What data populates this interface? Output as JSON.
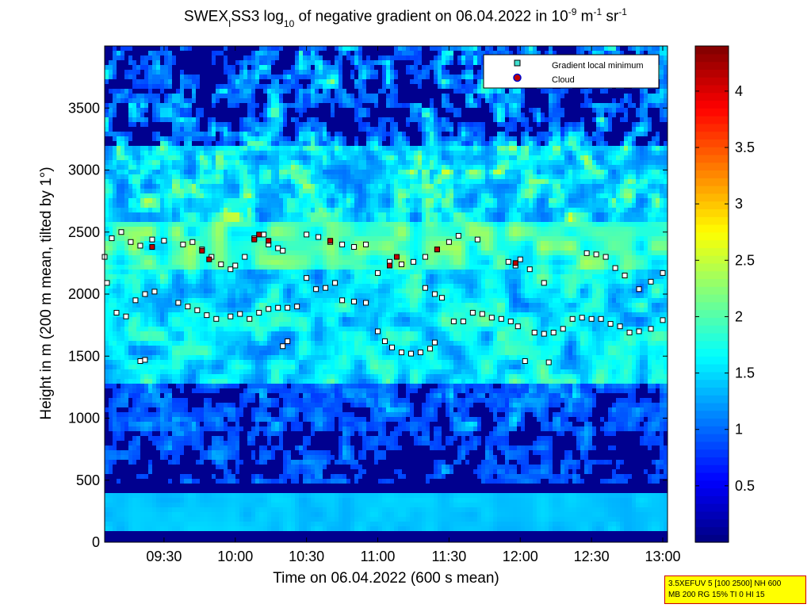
{
  "title": {
    "prefix": "SWEX",
    "sub1": "I",
    "mid": "SS3 log",
    "sub2": "10",
    "text": " of negative gradient on 06.04.2022 in 10",
    "sup1": "-9",
    "unit1": " m",
    "sup2": "-1",
    "unit2": " sr",
    "sup3": "-1"
  },
  "info_box": {
    "line1": "3.5XEFUV 5 [100 2500] NH 600",
    "line2": "MB 200 RG 15% TI 0 HI 15"
  },
  "colors": {
    "background_low": "#00008f",
    "marker_minimum": "#40e0d0",
    "marker_cloud": "#c00000",
    "info_box_bg": "#ffff00",
    "info_box_border": "#cc0000"
  },
  "chart_data": {
    "type": "heatmap",
    "title": "SWEX_ISS3 log10 of negative gradient on 06.04.2022 in 10^-9 m^-1 sr^-1",
    "xlabel": "Time on 06.04.2022 (600 s mean)",
    "ylabel": "Height in m (200 m mean, tilted by 1°)",
    "x_range": [
      "09:05",
      "13:02"
    ],
    "x_ticks": [
      "09:30",
      "10:00",
      "10:30",
      "11:00",
      "11:30",
      "12:00",
      "12:30",
      "13:00"
    ],
    "ylim": [
      0,
      4000
    ],
    "y_ticks": [
      0,
      500,
      1000,
      1500,
      2000,
      2500,
      3000,
      3500
    ],
    "colorbar": {
      "colormap": "jet",
      "range": [
        0,
        4.4
      ],
      "ticks": [
        0.5,
        1,
        1.5,
        2,
        2.5,
        3,
        3.5,
        4
      ]
    },
    "legend": {
      "placement": "top-right",
      "entries": [
        "Gradient local minimum",
        "Cloud"
      ]
    },
    "series": [
      {
        "name": "Gradient local minimum",
        "points": [
          [
            "09:05",
            2300
          ],
          [
            "09:08",
            2450
          ],
          [
            "09:12",
            2500
          ],
          [
            "09:16",
            2420
          ],
          [
            "09:20",
            2390
          ],
          [
            "09:25",
            2440
          ],
          [
            "09:30",
            2430
          ],
          [
            "09:38",
            2400
          ],
          [
            "09:42",
            2420
          ],
          [
            "09:46",
            2360
          ],
          [
            "09:50",
            2300
          ],
          [
            "09:54",
            2240
          ],
          [
            "09:58",
            2200
          ],
          [
            "10:00",
            2230
          ],
          [
            "10:04",
            2300
          ],
          [
            "10:08",
            2450
          ],
          [
            "10:12",
            2480
          ],
          [
            "10:14",
            2400
          ],
          [
            "10:18",
            2370
          ],
          [
            "10:20",
            2350
          ],
          [
            "10:30",
            2480
          ],
          [
            "10:35",
            2460
          ],
          [
            "10:40",
            2420
          ],
          [
            "10:45",
            2400
          ],
          [
            "10:50",
            2380
          ],
          [
            "10:55",
            2400
          ],
          [
            "11:00",
            2170
          ],
          [
            "11:05",
            2260
          ],
          [
            "11:10",
            2240
          ],
          [
            "11:15",
            2260
          ],
          [
            "11:20",
            2300
          ],
          [
            "11:25",
            2360
          ],
          [
            "11:30",
            2420
          ],
          [
            "11:34",
            2470
          ],
          [
            "11:42",
            2440
          ],
          [
            "11:55",
            2260
          ],
          [
            "11:58",
            2230
          ],
          [
            "12:00",
            2280
          ],
          [
            "12:04",
            2200
          ],
          [
            "12:10",
            2090
          ],
          [
            "12:28",
            2330
          ],
          [
            "12:32",
            2320
          ],
          [
            "12:36",
            2300
          ],
          [
            "12:40",
            2210
          ],
          [
            "12:44",
            2150
          ],
          [
            "12:50",
            2040
          ],
          [
            "12:55",
            2100
          ],
          [
            "13:00",
            2170
          ],
          [
            "09:06",
            2090
          ],
          [
            "09:10",
            1850
          ],
          [
            "09:14",
            1820
          ],
          [
            "09:18",
            1950
          ],
          [
            "09:22",
            2000
          ],
          [
            "09:26",
            2020
          ],
          [
            "09:36",
            1930
          ],
          [
            "09:40",
            1900
          ],
          [
            "09:44",
            1870
          ],
          [
            "09:48",
            1830
          ],
          [
            "09:52",
            1800
          ],
          [
            "09:58",
            1820
          ],
          [
            "10:02",
            1840
          ],
          [
            "10:06",
            1800
          ],
          [
            "10:10",
            1850
          ],
          [
            "10:14",
            1880
          ],
          [
            "10:18",
            1890
          ],
          [
            "10:22",
            1890
          ],
          [
            "10:26",
            1900
          ],
          [
            "10:30",
            2130
          ],
          [
            "10:34",
            2040
          ],
          [
            "10:38",
            2050
          ],
          [
            "10:42",
            2090
          ],
          [
            "10:45",
            1950
          ],
          [
            "10:50",
            1940
          ],
          [
            "10:55",
            1930
          ],
          [
            "11:00",
            1700
          ],
          [
            "11:03",
            1620
          ],
          [
            "11:06",
            1570
          ],
          [
            "11:10",
            1530
          ],
          [
            "11:14",
            1520
          ],
          [
            "11:18",
            1530
          ],
          [
            "11:22",
            1560
          ],
          [
            "11:24",
            1610
          ],
          [
            "11:20",
            2050
          ],
          [
            "11:24",
            2000
          ],
          [
            "11:27",
            1970
          ],
          [
            "11:32",
            1780
          ],
          [
            "11:36",
            1780
          ],
          [
            "11:40",
            1850
          ],
          [
            "11:44",
            1840
          ],
          [
            "11:48",
            1810
          ],
          [
            "11:52",
            1800
          ],
          [
            "11:56",
            1780
          ],
          [
            "11:59",
            1740
          ],
          [
            "12:02",
            1460
          ],
          [
            "12:06",
            1690
          ],
          [
            "12:10",
            1680
          ],
          [
            "12:14",
            1690
          ],
          [
            "12:18",
            1720
          ],
          [
            "12:22",
            1800
          ],
          [
            "12:26",
            1810
          ],
          [
            "12:30",
            1800
          ],
          [
            "12:34",
            1800
          ],
          [
            "12:38",
            1760
          ],
          [
            "12:42",
            1740
          ],
          [
            "12:46",
            1690
          ],
          [
            "12:50",
            1700
          ],
          [
            "12:55",
            1720
          ],
          [
            "13:00",
            1790
          ],
          [
            "09:20",
            1460
          ],
          [
            "09:22",
            1470
          ],
          [
            "10:20",
            1580
          ],
          [
            "10:22",
            1620
          ],
          [
            "12:12",
            1450
          ]
        ]
      },
      {
        "name": "Cloud",
        "points": [
          [
            "09:25",
            2380
          ],
          [
            "09:46",
            2350
          ],
          [
            "09:49",
            2280
          ],
          [
            "10:08",
            2440
          ],
          [
            "10:10",
            2480
          ],
          [
            "10:14",
            2430
          ],
          [
            "10:40",
            2430
          ],
          [
            "11:05",
            2230
          ],
          [
            "11:08",
            2300
          ],
          [
            "11:25",
            2360
          ],
          [
            "11:58",
            2250
          ]
        ]
      }
    ]
  }
}
